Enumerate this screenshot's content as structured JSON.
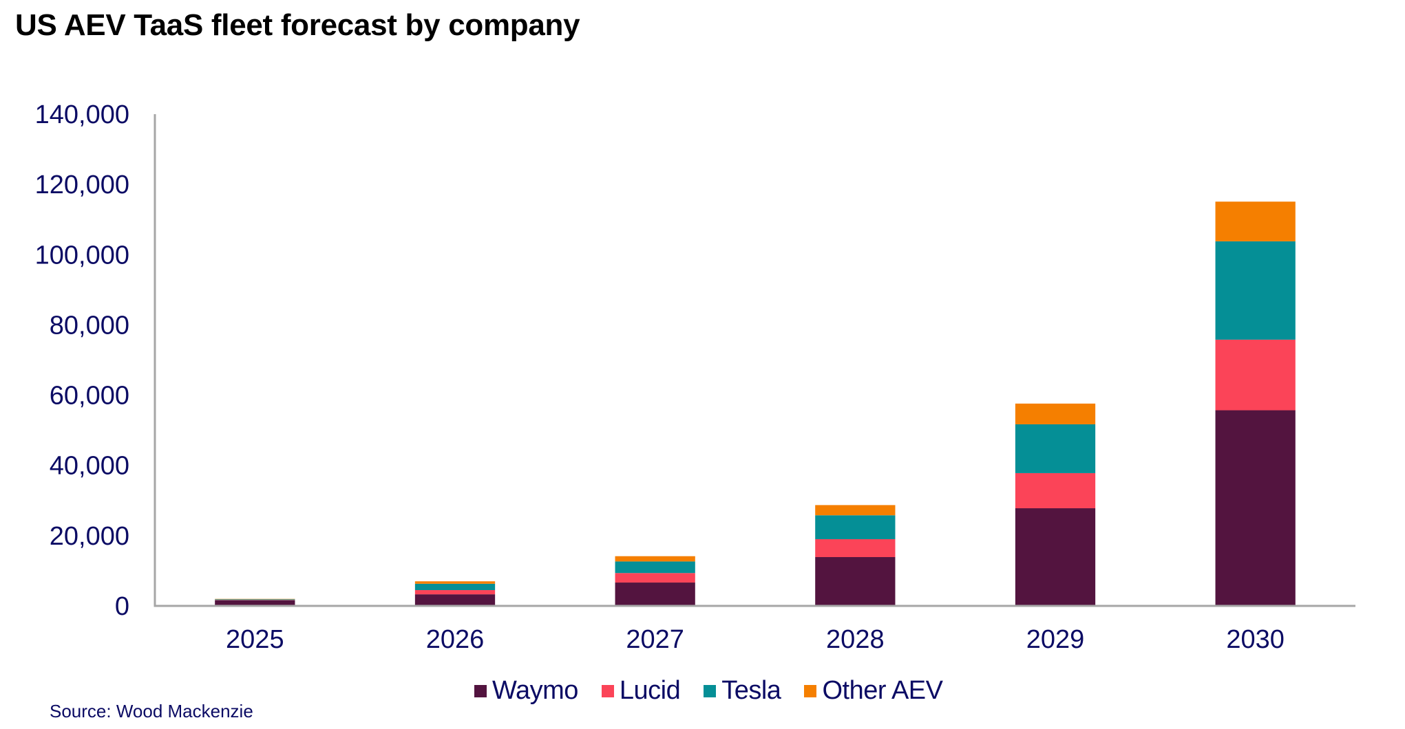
{
  "chart_data": {
    "type": "bar",
    "stacked": true,
    "title": "US AEV TaaS fleet forecast by company",
    "xlabel": "",
    "ylabel": "",
    "categories": [
      "2025",
      "2026",
      "2027",
      "2028",
      "2029",
      "2030"
    ],
    "series": [
      {
        "name": "Waymo",
        "color": "#53143F",
        "values": [
          1600,
          3300,
          6650,
          13900,
          27800,
          55700
        ]
      },
      {
        "name": "Lucid",
        "color": "#FB4458",
        "values": [
          100,
          1200,
          2700,
          5100,
          10000,
          20100
        ]
      },
      {
        "name": "Tesla",
        "color": "#058F96",
        "values": [
          200,
          1800,
          3300,
          6800,
          13900,
          28000
        ]
      },
      {
        "name": "Other AEV",
        "color": "#F57F00",
        "values": [
          100,
          700,
          1500,
          2900,
          5900,
          11300
        ]
      }
    ],
    "ylim": [
      0,
      140000
    ],
    "yticks": [
      0,
      20000,
      40000,
      60000,
      80000,
      100000,
      120000,
      140000
    ],
    "ytick_labels": [
      "0",
      "20,000",
      "40,000",
      "60,000",
      "80,000",
      "100,000",
      "120,000",
      "140,000"
    ],
    "grid": false,
    "legend_position": "bottom-center",
    "source": "Source: Wood Mackenzie"
  },
  "colors": {
    "text": "#0B0B64",
    "axis": "#A6A6A6",
    "title": "#000000"
  }
}
